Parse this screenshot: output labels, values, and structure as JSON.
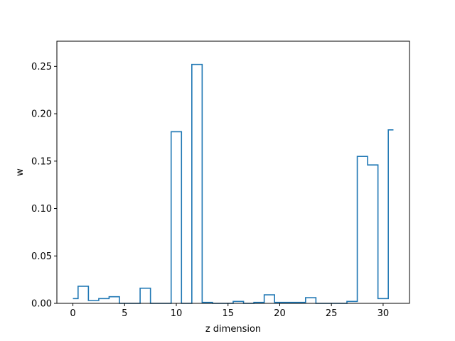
{
  "chart_data": {
    "type": "step",
    "title": "",
    "xlabel": "z dimension",
    "ylabel": "w",
    "xlim": [
      -1.55,
      32.55
    ],
    "ylim": [
      0,
      0.2765
    ],
    "xticks": [
      0,
      5,
      10,
      15,
      20,
      25,
      30
    ],
    "yticks": [
      0.0,
      0.05,
      0.1,
      0.15,
      0.2,
      0.25
    ],
    "ytick_labels": [
      "0.00",
      "0.05",
      "0.10",
      "0.15",
      "0.20",
      "0.25"
    ],
    "grid": false,
    "series": [
      {
        "color": "#1f77b4",
        "step": "mid",
        "x": [
          0,
          1,
          2,
          3,
          4,
          5,
          6,
          7,
          8,
          9,
          10,
          11,
          12,
          13,
          14,
          15,
          16,
          17,
          18,
          19,
          20,
          21,
          22,
          23,
          24,
          25,
          26,
          27,
          28,
          29,
          30,
          31
        ],
        "values": [
          0.005,
          0.018,
          0.003,
          0.005,
          0.007,
          0.0,
          0.0,
          0.016,
          0.0,
          0.0,
          0.181,
          0.0,
          0.252,
          0.001,
          0.0,
          0.0,
          0.002,
          0.0,
          0.001,
          0.009,
          0.001,
          0.001,
          0.001,
          0.006,
          0.0,
          0.0,
          0.0,
          0.002,
          0.155,
          0.146,
          0.005,
          0.183
        ]
      }
    ]
  }
}
